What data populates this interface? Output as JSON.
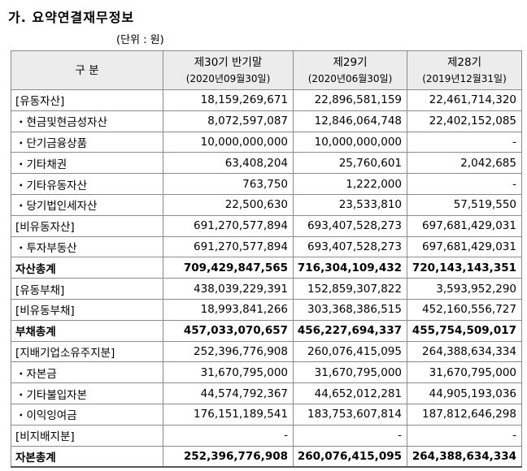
{
  "title": "가. 요약연결재무정보",
  "unit": "(단위 : 원)",
  "header": {
    "category": "구 분",
    "col1": {
      "name": "제30기 반기말",
      "date": "(2020년09월30일)"
    },
    "col2": {
      "name": "제29기",
      "date": "(2020년06월30일)"
    },
    "col3": {
      "name": "제28기",
      "date": "(2019년12월31일)"
    }
  },
  "rows": [
    {
      "label": "[유동자산]",
      "v1": "18,159,269,671",
      "v2": "22,896,581,159",
      "v3": "22,461,714,320"
    },
    {
      "label": "・현금및현금성자산",
      "v1": "8,072,597,087",
      "v2": "12,846,064,748",
      "v3": "22,402,152,085"
    },
    {
      "label": "・단기금융상품",
      "v1": "10,000,000,000",
      "v2": "10,000,000,000",
      "v3": "-"
    },
    {
      "label": "・기타채권",
      "v1": "63,408,204",
      "v2": "25,760,601",
      "v3": "2,042,685"
    },
    {
      "label": "・기타유동자산",
      "v1": "763,750",
      "v2": "1,222,000",
      "v3": "-"
    },
    {
      "label": "・당기법인세자산",
      "v1": "22,500,630",
      "v2": "23,533,810",
      "v3": "57,519,550"
    },
    {
      "label": "[비유동자산]",
      "v1": "691,270,577,894",
      "v2": "693,407,528,273",
      "v3": "697,681,429,031"
    },
    {
      "label": "・투자부동산",
      "v1": "691,270,577,894",
      "v2": "693,407,528,273",
      "v3": "697,681,429,031"
    },
    {
      "label": "자산총계",
      "v1": "709,429,847,565",
      "v2": "716,304,109,432",
      "v3": "720,143,143,351"
    },
    {
      "label": "[유동부채]",
      "v1": "438,039,229,391",
      "v2": "152,859,307,822",
      "v3": "3,593,952,290"
    },
    {
      "label": "[비유동부채]",
      "v1": "18,993,841,266",
      "v2": "303,368,386,515",
      "v3": "452,160,556,727"
    },
    {
      "label": "부채총계",
      "v1": "457,033,070,657",
      "v2": "456,227,694,337",
      "v3": "455,754,509,017"
    },
    {
      "label": "[지배기업소유주지분]",
      "v1": "252,396,776,908",
      "v2": "260,076,415,095",
      "v3": "264,388,634,334"
    },
    {
      "label": "・자본금",
      "v1": "31,670,795,000",
      "v2": "31,670,795,000",
      "v3": "31,670,795,000"
    },
    {
      "label": "・기타불입자본",
      "v1": "44,574,792,367",
      "v2": "44,652,012,281",
      "v3": "44,905,193,036"
    },
    {
      "label": "・이익잉여금",
      "v1": "176,151,189,541",
      "v2": "183,753,607,814",
      "v3": "187,812,646,298"
    },
    {
      "label": "[비지배지분]",
      "v1": "-",
      "v2": "-",
      "v3": "-"
    },
    {
      "label": "자본총계",
      "v1": "252,396,776,908",
      "v2": "260,076,415,095",
      "v3": "264,388,634,334"
    }
  ]
}
